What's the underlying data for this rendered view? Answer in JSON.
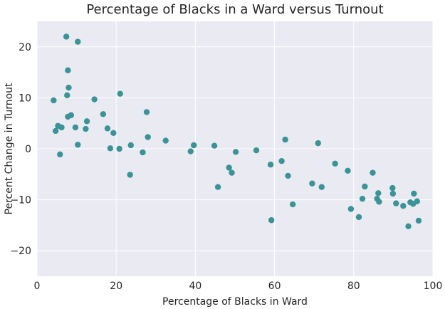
{
  "chart_data": {
    "type": "scatter",
    "title": "Percentage of Blacks in a Ward versus Turnout",
    "xlabel": "Percentage of Blacks in Ward",
    "ylabel": "Percent Change in Turnout",
    "xlim": [
      0,
      100
    ],
    "ylim": [
      -25,
      25
    ],
    "x_ticks": [
      "0",
      "20",
      "40",
      "60",
      "80",
      "100"
    ],
    "y_ticks": [
      "−20",
      "−10",
      "0",
      "10",
      "20"
    ],
    "x_tick_values": [
      0,
      20,
      40,
      60,
      80,
      100
    ],
    "y_tick_values": [
      -20,
      -10,
      0,
      10,
      20
    ],
    "grid": true,
    "background_color": "#EAEAF2",
    "grid_color": "#FFFFFF",
    "marker_color": "#3A9396",
    "series": [
      {
        "points": [
          {
            "x": 4.2,
            "y": 9.5
          },
          {
            "x": 4.7,
            "y": 3.5
          },
          {
            "x": 5.3,
            "y": 4.5
          },
          {
            "x": 5.8,
            "y": -1.1
          },
          {
            "x": 6.2,
            "y": 4.2
          },
          {
            "x": 7.4,
            "y": 22.0
          },
          {
            "x": 7.6,
            "y": 10.5
          },
          {
            "x": 7.8,
            "y": 15.4
          },
          {
            "x": 7.8,
            "y": 6.3
          },
          {
            "x": 8.0,
            "y": 12.0
          },
          {
            "x": 8.6,
            "y": 6.6
          },
          {
            "x": 9.7,
            "y": 4.2
          },
          {
            "x": 10.3,
            "y": 21.0
          },
          {
            "x": 10.3,
            "y": 0.8
          },
          {
            "x": 12.3,
            "y": 3.9
          },
          {
            "x": 12.6,
            "y": 5.4
          },
          {
            "x": 14.5,
            "y": 9.7
          },
          {
            "x": 16.7,
            "y": 6.8
          },
          {
            "x": 17.8,
            "y": 4.0
          },
          {
            "x": 18.5,
            "y": 0.1
          },
          {
            "x": 19.3,
            "y": 3.1
          },
          {
            "x": 20.8,
            "y": 0.0
          },
          {
            "x": 21.0,
            "y": 10.8
          },
          {
            "x": 23.5,
            "y": -5.1
          },
          {
            "x": 23.7,
            "y": 0.7
          },
          {
            "x": 26.7,
            "y": -0.7
          },
          {
            "x": 27.7,
            "y": 7.2
          },
          {
            "x": 28.0,
            "y": 2.3
          },
          {
            "x": 32.5,
            "y": 1.6
          },
          {
            "x": 38.8,
            "y": -0.5
          },
          {
            "x": 39.6,
            "y": 0.7
          },
          {
            "x": 44.8,
            "y": 0.6
          },
          {
            "x": 45.7,
            "y": -7.5
          },
          {
            "x": 48.5,
            "y": -3.7
          },
          {
            "x": 49.2,
            "y": -4.7
          },
          {
            "x": 50.2,
            "y": -0.6
          },
          {
            "x": 55.4,
            "y": -0.3
          },
          {
            "x": 59.0,
            "y": -3.1
          },
          {
            "x": 59.2,
            "y": -14.0
          },
          {
            "x": 61.8,
            "y": -2.4
          },
          {
            "x": 62.7,
            "y": 1.8
          },
          {
            "x": 63.4,
            "y": -5.3
          },
          {
            "x": 64.6,
            "y": -10.9
          },
          {
            "x": 69.5,
            "y": -6.8
          },
          {
            "x": 71.0,
            "y": 1.1
          },
          {
            "x": 71.9,
            "y": -7.5
          },
          {
            "x": 75.3,
            "y": -2.9
          },
          {
            "x": 78.5,
            "y": -4.3
          },
          {
            "x": 79.3,
            "y": -11.8
          },
          {
            "x": 81.3,
            "y": -13.4
          },
          {
            "x": 82.2,
            "y": -9.8
          },
          {
            "x": 82.8,
            "y": -7.4
          },
          {
            "x": 84.8,
            "y": -4.7
          },
          {
            "x": 85.9,
            "y": -9.8
          },
          {
            "x": 86.2,
            "y": -8.7
          },
          {
            "x": 86.4,
            "y": -10.4
          },
          {
            "x": 89.8,
            "y": -7.7
          },
          {
            "x": 89.9,
            "y": -8.8
          },
          {
            "x": 90.7,
            "y": -10.7
          },
          {
            "x": 92.5,
            "y": -11.2
          },
          {
            "x": 93.8,
            "y": -15.2
          },
          {
            "x": 94.3,
            "y": -10.5
          },
          {
            "x": 95.2,
            "y": -8.8
          },
          {
            "x": 95.0,
            "y": -10.8
          },
          {
            "x": 96.0,
            "y": -10.3
          },
          {
            "x": 96.4,
            "y": -14.1
          }
        ]
      }
    ]
  }
}
